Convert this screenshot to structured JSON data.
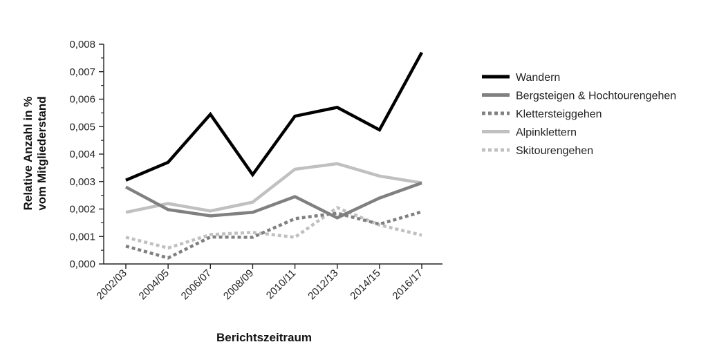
{
  "chart_data": {
    "type": "line",
    "xlabel": "Berichtszeitraum",
    "ylabel_lines": [
      "Relative Anzahl in %",
      "vom Mitgliederstand"
    ],
    "categories": [
      "2002/03",
      "2004/05",
      "2006/07",
      "2008/09",
      "2010/11",
      "2012/13",
      "2014/15",
      "2016/17"
    ],
    "ylim": [
      0,
      0.008
    ],
    "yticks": [
      "0,000",
      "0,001",
      "0,002",
      "0,003",
      "0,004",
      "0,005",
      "0,006",
      "0,007",
      "0,008"
    ],
    "grid": false,
    "legend_position": "right",
    "series": [
      {
        "name": "Wandern",
        "color": "#000000",
        "dash": "solid",
        "values": [
          0.00305,
          0.0037,
          0.00545,
          0.00325,
          0.00538,
          0.0057,
          0.00488,
          0.0077
        ]
      },
      {
        "name": "Bergsteigen & Hochtourengehen",
        "color": "#808080",
        "dash": "solid",
        "values": [
          0.0028,
          0.00198,
          0.00175,
          0.00188,
          0.00245,
          0.00168,
          0.0024,
          0.00295
        ]
      },
      {
        "name": "Klettersteiggehen",
        "color": "#808080",
        "dash": "dotted",
        "values": [
          0.00065,
          0.00022,
          0.00098,
          0.00097,
          0.00165,
          0.00185,
          0.00145,
          0.0019
        ]
      },
      {
        "name": "Alpinklettern",
        "color": "#c0c0c0",
        "dash": "solid",
        "values": [
          0.00188,
          0.0022,
          0.00193,
          0.00225,
          0.00345,
          0.00365,
          0.0032,
          0.00295
        ]
      },
      {
        "name": "Skitourengehen",
        "color": "#c0c0c0",
        "dash": "dotted",
        "values": [
          0.00097,
          0.00058,
          0.00107,
          0.00115,
          0.00097,
          0.00205,
          0.00142,
          0.00105
        ]
      }
    ]
  }
}
